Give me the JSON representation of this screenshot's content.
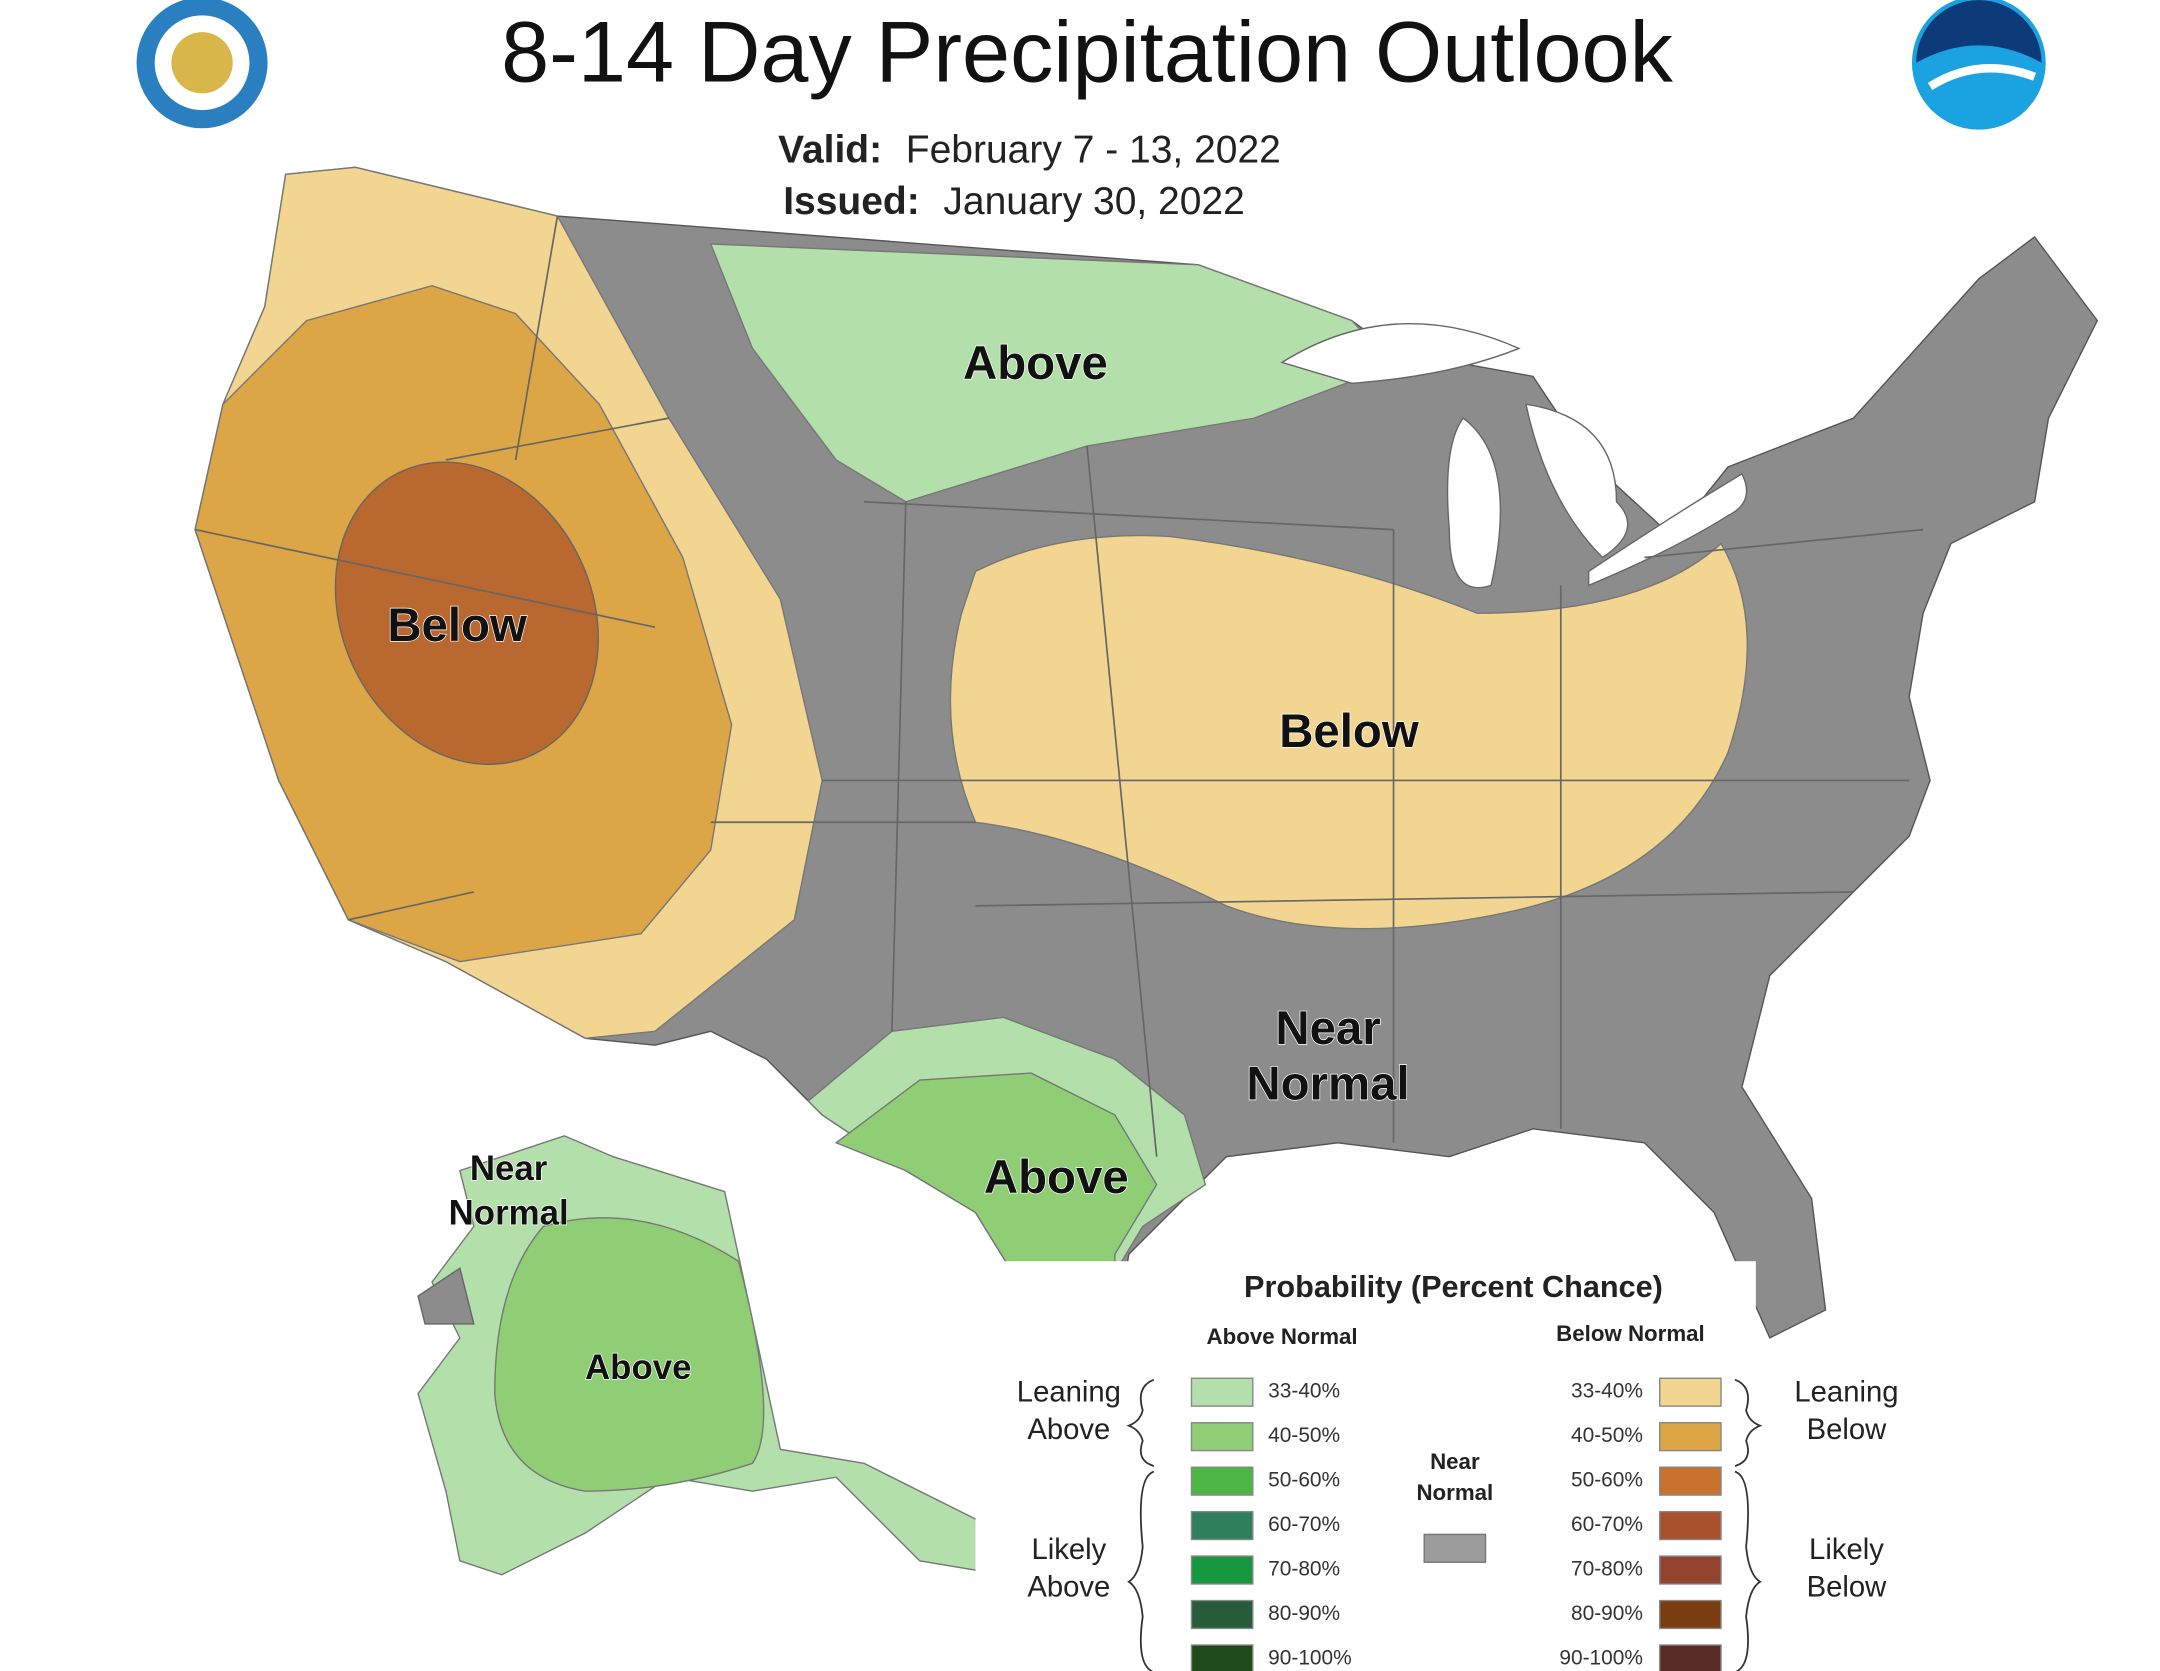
{
  "header": {
    "title": "8-14 Day Precipitation Outlook",
    "valid_label": "Valid:",
    "valid_value": "February 7 - 13, 2022",
    "issued_label": "Issued:",
    "issued_value": "January 30, 2022"
  },
  "map_labels": {
    "above_north": "Above",
    "below_west": "Below",
    "below_midwest": "Below",
    "near_normal": [
      "Near",
      "Normal"
    ],
    "above_texas": "Above",
    "alaska_near_normal": [
      "Near",
      "Normal"
    ],
    "alaska_above": "Above"
  },
  "legend": {
    "title": "Probability (Percent Chance)",
    "above_header": "Above Normal",
    "below_header": "Below Normal",
    "leaning_above": [
      "Leaning",
      "Above"
    ],
    "likely_above": [
      "Likely",
      "Above"
    ],
    "leaning_below": [
      "Leaning",
      "Below"
    ],
    "likely_below": [
      "Likely",
      "Below"
    ],
    "near_normal": [
      "Near",
      "Normal"
    ],
    "near_normal_color": "#9b9b9b",
    "above_entries": [
      {
        "label": "33-40%",
        "color": "#b3dfaa"
      },
      {
        "label": "40-50%",
        "color": "#8fce75"
      },
      {
        "label": "50-60%",
        "color": "#4cb543"
      },
      {
        "label": "60-70%",
        "color": "#2e7f5b"
      },
      {
        "label": "70-80%",
        "color": "#16993e"
      },
      {
        "label": "80-90%",
        "color": "#265c3a"
      },
      {
        "label": "90-100%",
        "color": "#1f4a1a"
      }
    ],
    "below_entries": [
      {
        "label": "33-40%",
        "color": "#f2d590"
      },
      {
        "label": "40-50%",
        "color": "#dca545"
      },
      {
        "label": "50-60%",
        "color": "#c9722f"
      },
      {
        "label": "60-70%",
        "color": "#a8522d"
      },
      {
        "label": "70-80%",
        "color": "#94432f"
      },
      {
        "label": "80-90%",
        "color": "#7a3d10"
      },
      {
        "label": "90-100%",
        "color": "#5a2a25"
      }
    ]
  }
}
